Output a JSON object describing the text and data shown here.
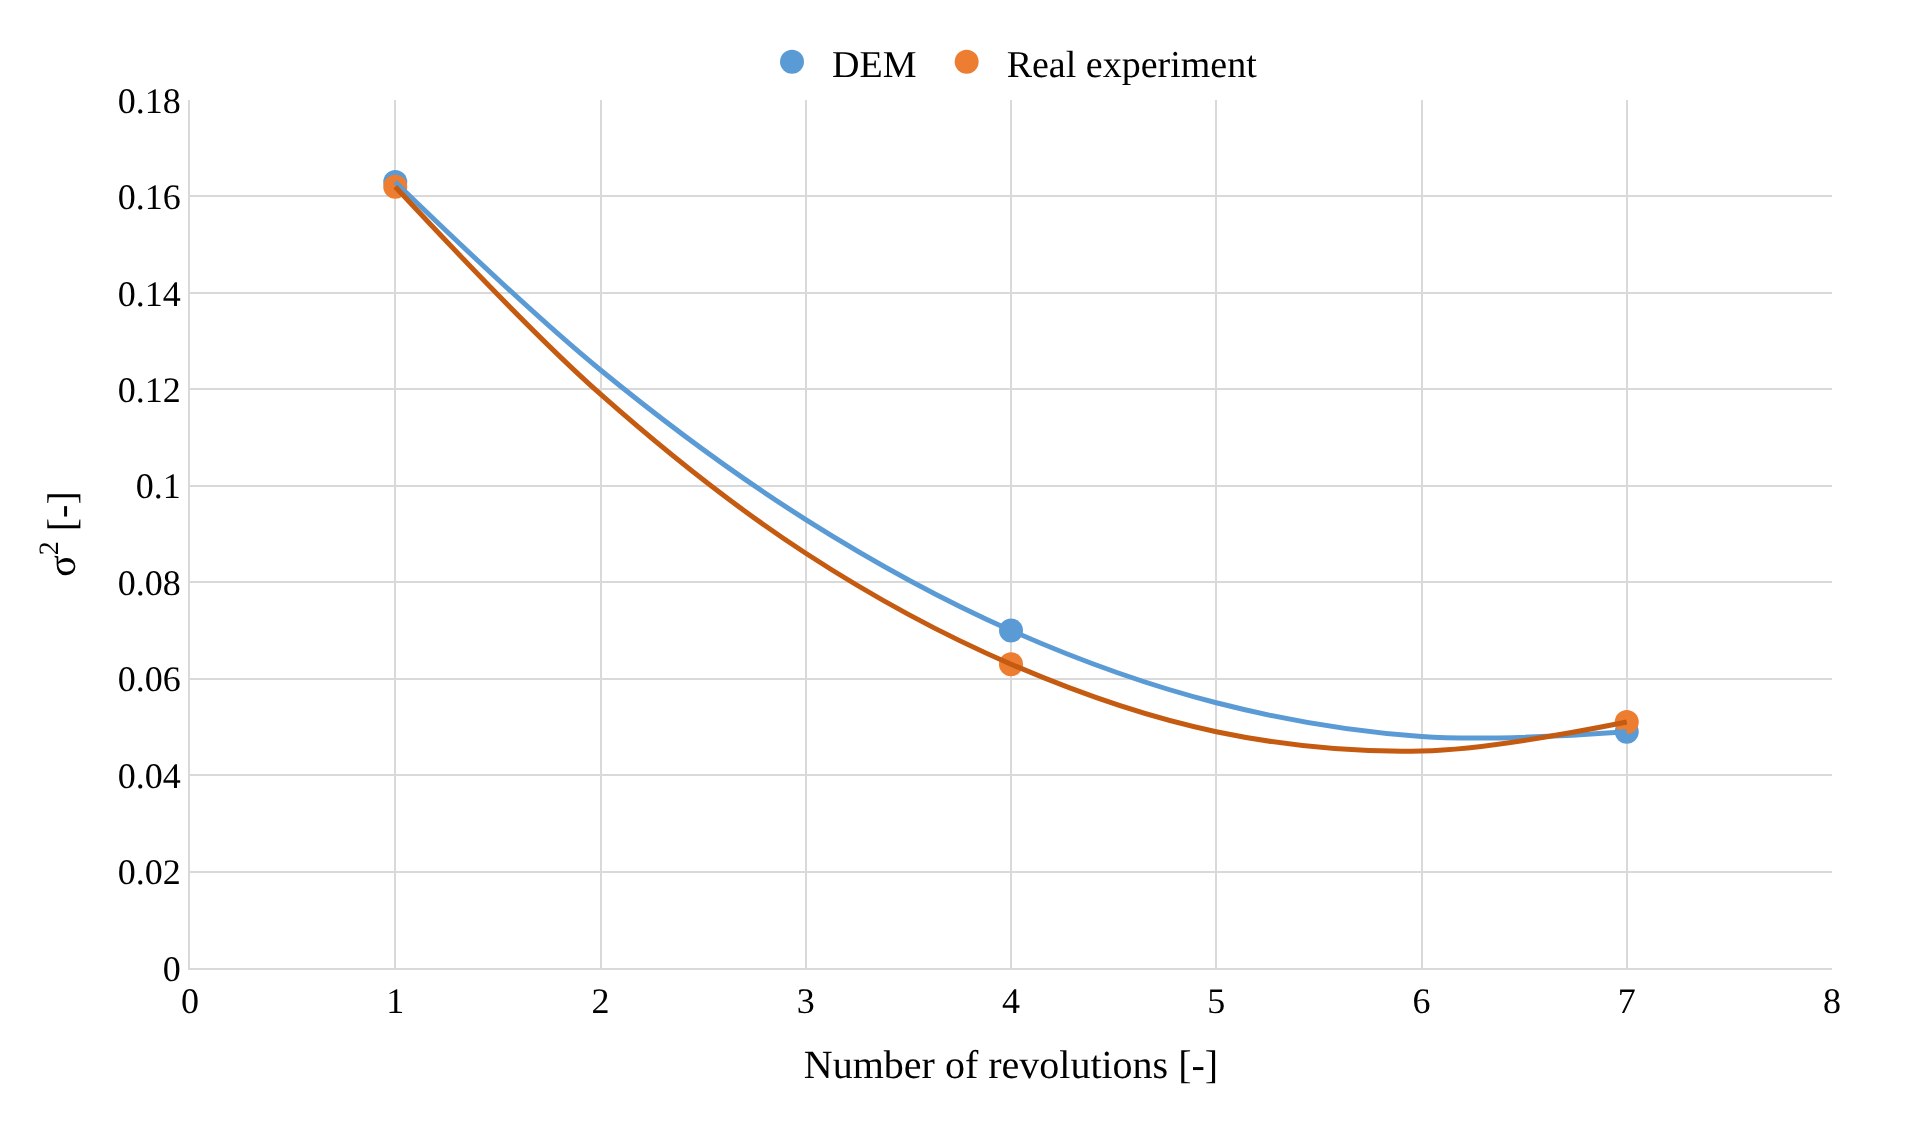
{
  "chart_data": {
    "type": "scatter",
    "xlabel": "Number of revolutions [-]",
    "ylabel": "σ$^{2}$ [-]",
    "xlim": [
      0,
      8
    ],
    "xticks": [
      0,
      1,
      2,
      3,
      4,
      5,
      6,
      7,
      8
    ],
    "ylim": [
      0,
      0.18
    ],
    "yticks": [
      0,
      0.02,
      0.04,
      0.06,
      0.08,
      {
        "value": 0.1,
        "label": "0.1"
      },
      0.12,
      0.14,
      0.16,
      0.18
    ],
    "grid": true,
    "legend": "top",
    "series": [
      {
        "name": "DEM",
        "marker": "circle",
        "color": "#5b9bd5",
        "x": [
          1,
          4,
          7
        ],
        "values": [
          0.163,
          0.07,
          0.049
        ]
      },
      {
        "name": "Real experiment",
        "marker": "circle",
        "color": "#ed7d31",
        "x": [
          1,
          4,
          7
        ],
        "values": [
          0.162,
          0.063,
          0.051
        ]
      },
      {
        "type": "line",
        "marker": "none",
        "line_style": "solid",
        "color": "#5b9bd5",
        "x": [
          1,
          2,
          3,
          4,
          5,
          6,
          7
        ],
        "values": [
          0.163,
          0.124,
          0.093,
          0.07,
          0.055,
          0.048,
          0.049
        ]
      },
      {
        "type": "line",
        "marker": "none",
        "line_style": "solid",
        "color": "#c55a11",
        "x": [
          1,
          2,
          3,
          4,
          5,
          6,
          7
        ],
        "values": [
          0.162,
          0.119,
          0.086,
          0.063,
          0.049,
          0.045,
          0.051
        ]
      }
    ]
  }
}
